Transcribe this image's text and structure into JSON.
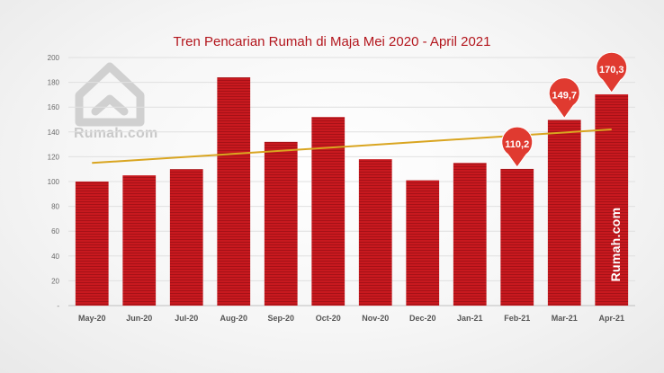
{
  "brand": {
    "logo_text": "Rumah.com",
    "side_label": "Rumah.com",
    "logo_icon": "house-logo-icon"
  },
  "colors": {
    "bar": "#c8191f",
    "trendline": "#d9a520",
    "pin": "#e03a30",
    "title": "#b3161d"
  },
  "chart_data": {
    "type": "bar",
    "title": "Tren Pencarian Rumah di Maja Mei 2020 - April 2021",
    "xlabel": "",
    "ylabel": "",
    "categories": [
      "May-20",
      "Jun-20",
      "Jul-20",
      "Aug-20",
      "Sep-20",
      "Oct-20",
      "Nov-20",
      "Dec-20",
      "Jan-21",
      "Feb-21",
      "Mar-21",
      "Apr-21"
    ],
    "values": [
      100,
      105,
      110,
      184,
      132,
      152,
      118,
      101,
      115,
      110.2,
      149.7,
      170.3
    ],
    "ylim": [
      0,
      200
    ],
    "yticks": [
      0,
      20,
      40,
      60,
      80,
      100,
      120,
      140,
      160,
      180,
      200
    ],
    "ytick_labels": [
      "-",
      "20",
      "40",
      "60",
      "80",
      "100",
      "120",
      "140",
      "160",
      "180",
      "200"
    ],
    "trendline": {
      "type": "linear",
      "start": 115,
      "end": 142
    },
    "callouts": [
      {
        "index": 9,
        "label": "110,2"
      },
      {
        "index": 10,
        "label": "149,7"
      },
      {
        "index": 11,
        "label": "170,3"
      }
    ],
    "grid": true,
    "legend": "none"
  }
}
